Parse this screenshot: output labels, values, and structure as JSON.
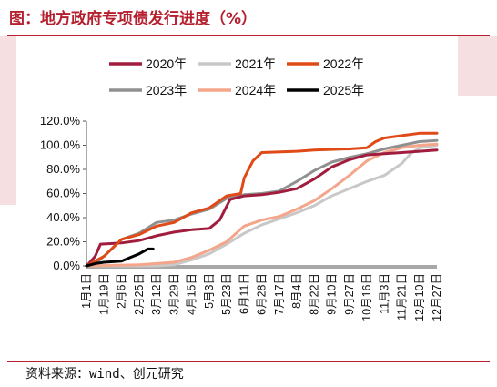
{
  "header": {
    "title": "图：地方政府专项债发行进度（%）"
  },
  "footer": {
    "source": "资料来源：wind、创元研究"
  },
  "chart_data": {
    "type": "line",
    "title": "图：地方政府专项债发行进度（%）",
    "xlabel": "",
    "ylabel": "",
    "ylim": [
      0,
      1.2
    ],
    "yticks": [
      "0.0%",
      "20.0%",
      "40.0%",
      "60.0%",
      "80.0%",
      "100.0%",
      "120.0%"
    ],
    "xticks": [
      "1月1日",
      "1月19日",
      "2月6日",
      "2月25日",
      "3月12日",
      "3月29日",
      "4月15日",
      "5月3日",
      "5月23日",
      "6月11日",
      "6月28日",
      "7月17日",
      "8月4日",
      "8月22日",
      "9月10日",
      "9月27日",
      "10月16日",
      "11月3日",
      "11月21日",
      "12月10日",
      "12月27日"
    ],
    "grid": false,
    "legend": "top-center",
    "series": [
      {
        "name": "2020年",
        "color": "#a01d3e",
        "points": [
          [
            0,
            0
          ],
          [
            0.2,
            0.03
          ],
          [
            0.5,
            0.08
          ],
          [
            0.8,
            0.18
          ],
          [
            2,
            0.19
          ],
          [
            3,
            0.21
          ],
          [
            4,
            0.25
          ],
          [
            5,
            0.28
          ],
          [
            6,
            0.3
          ],
          [
            7,
            0.31
          ],
          [
            7.6,
            0.38
          ],
          [
            8.2,
            0.55
          ],
          [
            9,
            0.58
          ],
          [
            10,
            0.59
          ],
          [
            11,
            0.61
          ],
          [
            12,
            0.64
          ],
          [
            13,
            0.72
          ],
          [
            14,
            0.82
          ],
          [
            15,
            0.88
          ],
          [
            16,
            0.92
          ],
          [
            17,
            0.93
          ],
          [
            18,
            0.94
          ],
          [
            19,
            0.95
          ],
          [
            20,
            0.96
          ]
        ]
      },
      {
        "name": "2021年",
        "color": "#c8c8c8",
        "points": [
          [
            0,
            0
          ],
          [
            4,
            0
          ],
          [
            5,
            0.01
          ],
          [
            6,
            0.05
          ],
          [
            7,
            0.1
          ],
          [
            8,
            0.18
          ],
          [
            9,
            0.27
          ],
          [
            10,
            0.34
          ],
          [
            11,
            0.39
          ],
          [
            12,
            0.44
          ],
          [
            13,
            0.5
          ],
          [
            14,
            0.58
          ],
          [
            15,
            0.64
          ],
          [
            16,
            0.7
          ],
          [
            17,
            0.75
          ],
          [
            18,
            0.85
          ],
          [
            18.5,
            0.93
          ],
          [
            19,
            0.98
          ],
          [
            20,
            1.0
          ]
        ]
      },
      {
        "name": "2022年",
        "color": "#e04a16",
        "points": [
          [
            0,
            0
          ],
          [
            1,
            0.08
          ],
          [
            2,
            0.22
          ],
          [
            3,
            0.26
          ],
          [
            4,
            0.33
          ],
          [
            5,
            0.36
          ],
          [
            6,
            0.44
          ],
          [
            7,
            0.48
          ],
          [
            8,
            0.58
          ],
          [
            8.8,
            0.6
          ],
          [
            9,
            0.73
          ],
          [
            9.5,
            0.87
          ],
          [
            10,
            0.94
          ],
          [
            12,
            0.95
          ],
          [
            13,
            0.96
          ],
          [
            15,
            0.97
          ],
          [
            16,
            0.98
          ],
          [
            16.5,
            1.03
          ],
          [
            17,
            1.06
          ],
          [
            18,
            1.08
          ],
          [
            19,
            1.1
          ],
          [
            20,
            1.1
          ]
        ]
      },
      {
        "name": "2023年",
        "color": "#909090",
        "points": [
          [
            0,
            0
          ],
          [
            0.5,
            0.02
          ],
          [
            1,
            0.08
          ],
          [
            2,
            0.22
          ],
          [
            3,
            0.27
          ],
          [
            4,
            0.36
          ],
          [
            5,
            0.38
          ],
          [
            6,
            0.43
          ],
          [
            7,
            0.47
          ],
          [
            8,
            0.56
          ],
          [
            9,
            0.59
          ],
          [
            10,
            0.6
          ],
          [
            11,
            0.62
          ],
          [
            12,
            0.7
          ],
          [
            13,
            0.79
          ],
          [
            14,
            0.86
          ],
          [
            15,
            0.9
          ],
          [
            16,
            0.93
          ],
          [
            17,
            0.97
          ],
          [
            18,
            1.0
          ],
          [
            19,
            1.03
          ],
          [
            20,
            1.04
          ]
        ]
      },
      {
        "name": "2024年",
        "color": "#f4a58a",
        "points": [
          [
            0,
            0
          ],
          [
            3,
            0.01
          ],
          [
            5,
            0.03
          ],
          [
            6,
            0.07
          ],
          [
            7,
            0.13
          ],
          [
            8,
            0.2
          ],
          [
            9,
            0.33
          ],
          [
            10,
            0.38
          ],
          [
            11,
            0.41
          ],
          [
            12,
            0.47
          ],
          [
            13,
            0.54
          ],
          [
            14,
            0.64
          ],
          [
            15,
            0.75
          ],
          [
            16,
            0.87
          ],
          [
            17,
            0.94
          ],
          [
            18,
            0.98
          ],
          [
            19,
            1.0
          ],
          [
            20,
            1.01
          ]
        ]
      },
      {
        "name": "2025年",
        "color": "#000000",
        "points": [
          [
            0,
            0
          ],
          [
            0.5,
            0.02
          ],
          [
            1,
            0.03
          ],
          [
            2,
            0.04
          ],
          [
            2.5,
            0.07
          ],
          [
            3,
            0.1
          ],
          [
            3.5,
            0.14
          ],
          [
            3.8,
            0.14
          ]
        ]
      }
    ]
  }
}
